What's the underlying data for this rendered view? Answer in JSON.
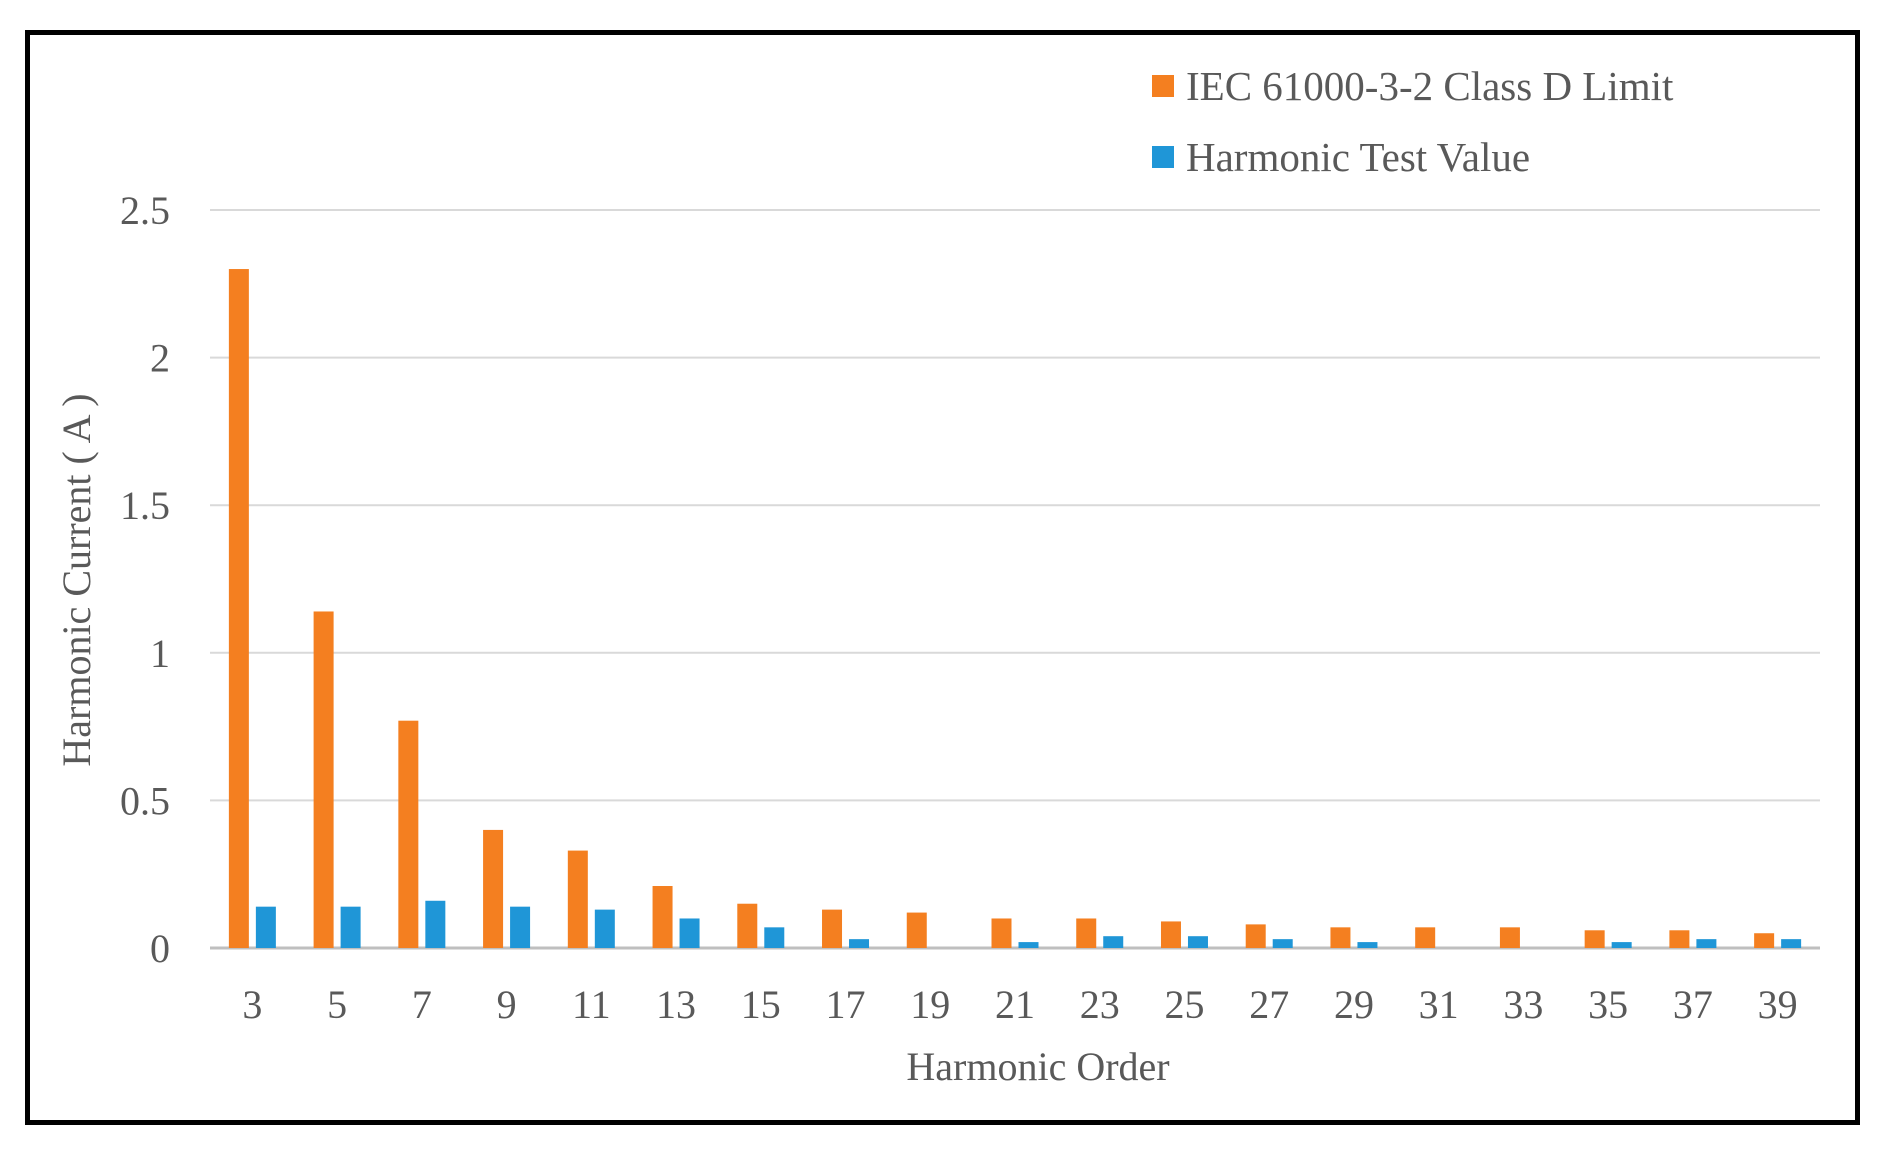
{
  "chart_data": {
    "type": "bar",
    "xlabel": "Harmonic Order",
    "ylabel": "Harmonic Current ( A )",
    "ylim": [
      0,
      2.5
    ],
    "yticks": [
      "0",
      "0.5",
      "1",
      "1.5",
      "2",
      "2.5"
    ],
    "grid": true,
    "legend_position": "top-right",
    "categories": [
      "3",
      "5",
      "7",
      "9",
      "11",
      "13",
      "15",
      "17",
      "19",
      "21",
      "23",
      "25",
      "27",
      "29",
      "31",
      "33",
      "35",
      "37",
      "39"
    ],
    "series": [
      {
        "name": "IEC 61000-3-2 Class D Limit",
        "color": "#f47f20",
        "values": [
          2.3,
          1.14,
          0.77,
          0.4,
          0.33,
          0.21,
          0.15,
          0.13,
          0.12,
          0.1,
          0.1,
          0.09,
          0.08,
          0.07,
          0.07,
          0.07,
          0.06,
          0.06,
          0.05
        ]
      },
      {
        "name": "Harmonic Test Value",
        "color": "#1f96d7",
        "values": [
          0.14,
          0.14,
          0.16,
          0.14,
          0.13,
          0.1,
          0.07,
          0.03,
          0.0,
          0.02,
          0.04,
          0.04,
          0.03,
          0.02,
          0.0,
          0.0,
          0.02,
          0.03,
          0.03
        ]
      }
    ]
  }
}
